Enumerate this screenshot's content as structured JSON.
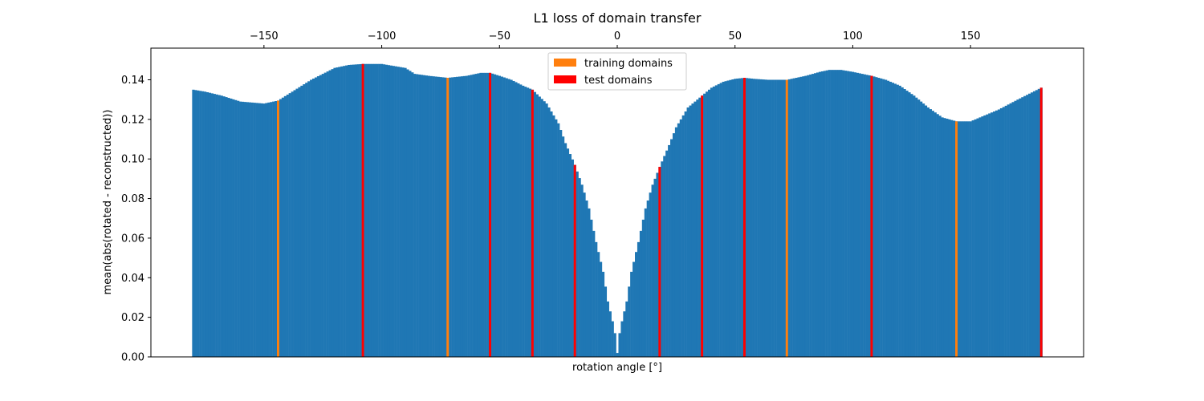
{
  "chart_data": {
    "type": "bar",
    "title": "L1 loss of domain transfer",
    "xlabel": "rotation angle [°]",
    "ylabel": "mean(abs(rotated - reconstructed))",
    "xlim": [
      -198,
      198
    ],
    "ylim": [
      0,
      0.156
    ],
    "x_ticks_top": [
      -150,
      -100,
      -50,
      0,
      50,
      100,
      150
    ],
    "x_tick_labels_top": [
      "−150",
      "−100",
      "−50",
      "0",
      "50",
      "100",
      "150"
    ],
    "y_ticks": [
      0.0,
      0.02,
      0.04,
      0.06,
      0.08,
      0.1,
      0.12,
      0.14
    ],
    "y_tick_labels": [
      "0.00",
      "0.02",
      "0.04",
      "0.06",
      "0.08",
      "0.10",
      "0.12",
      "0.14"
    ],
    "grid": false,
    "legend_position": "upper center",
    "bar_width_deg": 1,
    "profile": {
      "x": [
        -180,
        -175,
        -168,
        -160,
        -150,
        -144,
        -138,
        -130,
        -120,
        -114,
        -108,
        -100,
        -95,
        -90,
        -86,
        -80,
        -72,
        -64,
        -58,
        -54,
        -50,
        -45,
        -40,
        -36,
        -30,
        -25,
        -22,
        -18,
        -15,
        -12,
        -9,
        -6,
        -4,
        -2,
        -1,
        0,
        1,
        2,
        4,
        6,
        9,
        12,
        15,
        18,
        22,
        25,
        30,
        36,
        40,
        45,
        50,
        54,
        58,
        64,
        72,
        80,
        86,
        90,
        95,
        100,
        108,
        114,
        120,
        126,
        132,
        138,
        144,
        150,
        156,
        162,
        170,
        175,
        180
      ],
      "y": [
        0.135,
        0.134,
        0.132,
        0.129,
        0.128,
        0.1295,
        0.134,
        0.14,
        0.146,
        0.1475,
        0.148,
        0.148,
        0.147,
        0.146,
        0.143,
        0.142,
        0.141,
        0.142,
        0.1435,
        0.1435,
        0.142,
        0.14,
        0.137,
        0.135,
        0.128,
        0.118,
        0.108,
        0.097,
        0.087,
        0.075,
        0.058,
        0.043,
        0.028,
        0.018,
        0.012,
        0.002,
        0.012,
        0.018,
        0.028,
        0.043,
        0.058,
        0.075,
        0.087,
        0.096,
        0.107,
        0.116,
        0.126,
        0.132,
        0.136,
        0.139,
        0.1405,
        0.141,
        0.1405,
        0.14,
        0.14,
        0.142,
        0.144,
        0.145,
        0.145,
        0.144,
        0.142,
        0.14,
        0.137,
        0.132,
        0.126,
        0.121,
        0.119,
        0.119,
        0.122,
        0.125,
        0.13,
        0.133,
        0.136
      ]
    },
    "series": [
      {
        "name": "training domains",
        "color": "#ff7f0e",
        "x": [
          -144,
          -72,
          72,
          144
        ],
        "values": [
          0.1295,
          0.141,
          0.14,
          0.119
        ]
      },
      {
        "name": "test domains",
        "color": "#ff0000",
        "x": [
          -108,
          -54,
          -36,
          -18,
          18,
          36,
          54,
          108,
          180
        ],
        "values": [
          0.148,
          0.1435,
          0.135,
          0.097,
          0.096,
          0.132,
          0.141,
          0.142,
          0.136
        ]
      }
    ],
    "colors": {
      "all_angles": "#1f77b4",
      "training": "#ff7f0e",
      "test": "#ff0000"
    }
  }
}
